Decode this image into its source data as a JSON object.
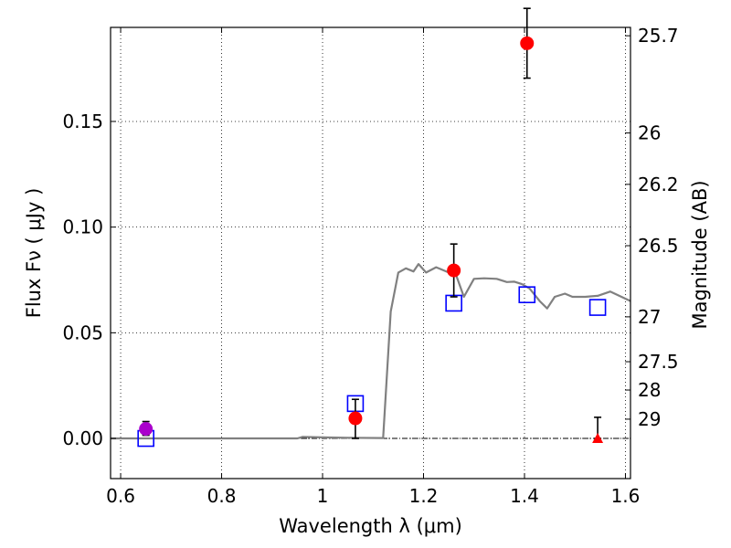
{
  "chart_data": {
    "type": "scatter",
    "title": "",
    "xlabel": "Wavelength  λ (μm)",
    "ylabel": "Flux  Fν  ( μJy )",
    "y2label": "Magnitude (AB)",
    "xlim": [
      0.58,
      1.61
    ],
    "ylim": [
      -0.019,
      0.1945
    ],
    "grid": true,
    "x_ticks": [
      {
        "value": 0.6,
        "label": "0.6"
      },
      {
        "value": 0.8,
        "label": "0.8"
      },
      {
        "value": 1.0,
        "label": "1"
      },
      {
        "value": 1.2,
        "label": "1.2"
      },
      {
        "value": 1.4,
        "label": "1.4"
      },
      {
        "value": 1.6,
        "label": "1.6"
      }
    ],
    "y_ticks": [
      {
        "value": 0.0,
        "label": "0.00"
      },
      {
        "value": 0.05,
        "label": "0.05"
      },
      {
        "value": 0.1,
        "label": "0.10"
      },
      {
        "value": 0.15,
        "label": "0.15"
      }
    ],
    "mag_ticks": [
      {
        "mag": 25.7,
        "label": "25.7"
      },
      {
        "mag": 26.0,
        "label": "26"
      },
      {
        "mag": 26.2,
        "label": "26.2"
      },
      {
        "mag": 26.5,
        "label": "26.5"
      },
      {
        "mag": 27.0,
        "label": "27"
      },
      {
        "mag": 27.5,
        "label": "27.5"
      },
      {
        "mag": 28.0,
        "label": "28"
      },
      {
        "mag": 29.0,
        "label": "29"
      }
    ],
    "model_sed": {
      "color": "#808080",
      "x": [
        0.58,
        0.95,
        0.96,
        1.0,
        1.05,
        1.12,
        1.135,
        1.15,
        1.165,
        1.18,
        1.19,
        1.205,
        1.225,
        1.235,
        1.25,
        1.265,
        1.28,
        1.3,
        1.32,
        1.345,
        1.365,
        1.38,
        1.395,
        1.41,
        1.43,
        1.445,
        1.46,
        1.48,
        1.495,
        1.52,
        1.545,
        1.57,
        1.61
      ],
      "y": [
        0.0,
        0.0,
        0.0007,
        0.0005,
        0.0003,
        0.0002,
        0.06,
        0.0785,
        0.0805,
        0.079,
        0.0825,
        0.0785,
        0.081,
        0.08,
        0.0785,
        0.077,
        0.067,
        0.0755,
        0.0758,
        0.0755,
        0.074,
        0.0742,
        0.073,
        0.071,
        0.065,
        0.0615,
        0.067,
        0.0685,
        0.067,
        0.067,
        0.0675,
        0.0695,
        0.065
      ]
    },
    "observed": {
      "color": "#ff0000",
      "points": [
        {
          "x": 1.065,
          "y": 0.0095,
          "yerr_low": 0.0095,
          "yerr_high": 0.009
        },
        {
          "x": 1.26,
          "y": 0.0795,
          "yerr_low": 0.0125,
          "yerr_high": 0.0125
        },
        {
          "x": 1.405,
          "y": 0.187,
          "yerr_low": 0.0165,
          "yerr_high": 0.0165
        }
      ]
    },
    "upper_limit": {
      "color": "#ff0000",
      "x": 1.545,
      "y": 0.0,
      "yerr_high": 0.01
    },
    "magenta_point": {
      "color": "#aa00cc",
      "x": 0.65,
      "y": 0.0045,
      "yerr_low": 0.003,
      "yerr_high": 0.0035
    },
    "model_photometry": {
      "color": "#0000ff",
      "points": [
        {
          "x": 0.65,
          "y": 0.0
        },
        {
          "x": 1.065,
          "y": 0.0165
        },
        {
          "x": 1.26,
          "y": 0.064
        },
        {
          "x": 1.405,
          "y": 0.068
        },
        {
          "x": 1.545,
          "y": 0.062
        }
      ]
    }
  }
}
